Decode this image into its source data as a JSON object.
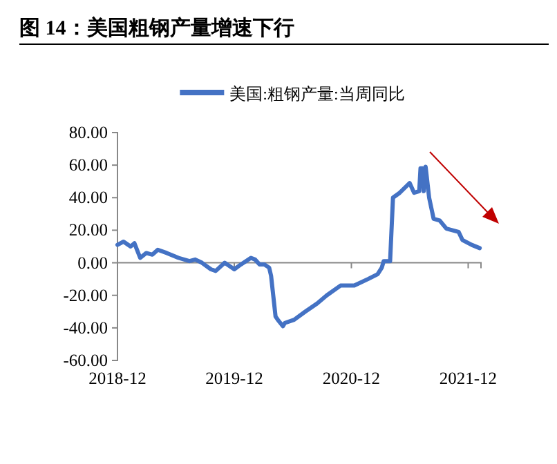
{
  "chart_data": {
    "type": "line",
    "title": "图 14：美国粗钢产量增速下行",
    "x": [
      "2018-12-01",
      "2018-12-20",
      "2019-01-11",
      "2019-01-23",
      "2019-02-10",
      "2019-03-01",
      "2019-03-20",
      "2019-04-06",
      "2019-05-04",
      "2019-06-10",
      "2019-07-14",
      "2019-08-01",
      "2019-08-22",
      "2019-09-19",
      "2019-10-04",
      "2019-11-01",
      "2019-12-01",
      "2019-12-22",
      "2020-01-22",
      "2020-02-04",
      "2020-02-18",
      "2020-03-04",
      "2020-03-19",
      "2020-03-25",
      "2020-04-08",
      "2020-04-15",
      "2020-05-01",
      "2020-05-07",
      "2020-06-05",
      "2020-07-10",
      "2020-08-16",
      "2020-09-15",
      "2020-10-28",
      "2020-12-10",
      "2021-01-22",
      "2021-02-21",
      "2021-03-06",
      "2021-03-12",
      "2021-04-01",
      "2021-04-10",
      "2021-05-01",
      "2021-06-01",
      "2021-06-15",
      "2021-07-01",
      "2021-07-05",
      "2021-07-12",
      "2021-07-15",
      "2021-07-21",
      "2021-08-01",
      "2021-08-15",
      "2021-09-03",
      "2021-09-24",
      "2021-11-01",
      "2021-11-13",
      "2021-12-12",
      "2022-01-06"
    ],
    "series": [
      {
        "name": "美国:粗钢产量:当周同比",
        "color": "#4472c4",
        "values": [
          11,
          13,
          10,
          12,
          3,
          6,
          5,
          8,
          6,
          3,
          1,
          2,
          0,
          -4,
          -5,
          0,
          -4,
          -1,
          3,
          2,
          -1,
          -1,
          -3,
          -8,
          -33,
          -35,
          -39,
          -37,
          -35,
          -30,
          -25,
          -20,
          -14,
          -14,
          -10,
          -7,
          -3,
          1,
          1,
          40,
          43,
          49,
          43,
          44,
          58,
          58,
          44,
          59,
          40,
          27,
          26,
          21,
          19,
          14,
          11,
          9
        ]
      }
    ],
    "xlim": [
      "2018-12-01",
      "2022-01-10"
    ],
    "xticks": [
      {
        "value": "2018-12-01",
        "label": "2018-12"
      },
      {
        "value": "2019-12-01",
        "label": "2019-12"
      },
      {
        "value": "2020-12-01",
        "label": "2020-12"
      },
      {
        "value": "2021-12-01",
        "label": "2021-12"
      }
    ],
    "ylim": [
      -60,
      80
    ],
    "yticks": [
      {
        "value": -60,
        "label": "-60.00"
      },
      {
        "value": -40,
        "label": "-40.00"
      },
      {
        "value": -20,
        "label": "-20.00"
      },
      {
        "value": 0,
        "label": "0.00"
      },
      {
        "value": 20,
        "label": "20.00"
      },
      {
        "value": 40,
        "label": "40.00"
      },
      {
        "value": 60,
        "label": "60.00"
      },
      {
        "value": 80,
        "label": "80.00"
      }
    ],
    "legend": "top",
    "grid": false,
    "marker": "none",
    "line_style": "solid"
  }
}
